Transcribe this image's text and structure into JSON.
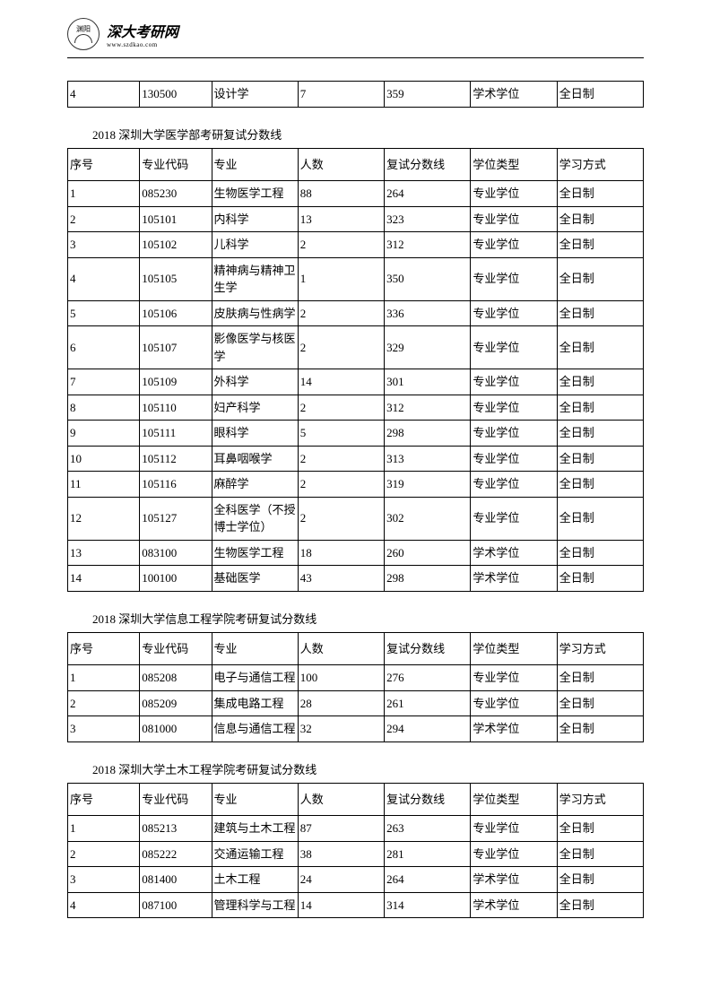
{
  "header": {
    "logo_top": "渊阳",
    "brand_main": "深大考研网",
    "brand_sub": "www.szdkao.com"
  },
  "tables": {
    "columns": [
      "序号",
      "专业代码",
      "专业",
      "人数",
      "复试分数线",
      "学位类型",
      "学习方式"
    ],
    "top_row": [
      "4",
      "130500",
      "设计学",
      "7",
      "359",
      "学术学位",
      "全日制"
    ],
    "medical": {
      "title": "2018 深圳大学医学部考研复试分数线",
      "rows": [
        [
          "1",
          "085230",
          "生物医学工程",
          "88",
          "264",
          "专业学位",
          "全日制"
        ],
        [
          "2",
          "105101",
          "内科学",
          "13",
          "323",
          "专业学位",
          "全日制"
        ],
        [
          "3",
          "105102",
          "儿科学",
          "2",
          "312",
          "专业学位",
          "全日制"
        ],
        [
          "4",
          "105105",
          "精神病与精神卫生学",
          "1",
          "350",
          "专业学位",
          "全日制"
        ],
        [
          "5",
          "105106",
          "皮肤病与性病学",
          "2",
          "336",
          "专业学位",
          "全日制"
        ],
        [
          "6",
          "105107",
          "影像医学与核医学",
          "2",
          "329",
          "专业学位",
          "全日制"
        ],
        [
          "7",
          "105109",
          "外科学",
          "14",
          "301",
          "专业学位",
          "全日制"
        ],
        [
          "8",
          "105110",
          "妇产科学",
          "2",
          "312",
          "专业学位",
          "全日制"
        ],
        [
          "9",
          "105111",
          "眼科学",
          "5",
          "298",
          "专业学位",
          "全日制"
        ],
        [
          "10",
          "105112",
          "耳鼻咽喉学",
          "2",
          "313",
          "专业学位",
          "全日制"
        ],
        [
          "11",
          "105116",
          "麻醉学",
          "2",
          "319",
          "专业学位",
          "全日制"
        ],
        [
          "12",
          "105127",
          "全科医学（不授博士学位）",
          "2",
          "302",
          "专业学位",
          "全日制"
        ],
        [
          "13",
          "083100",
          "生物医学工程",
          "18",
          "260",
          "学术学位",
          "全日制"
        ],
        [
          "14",
          "100100",
          "基础医学",
          "43",
          "298",
          "学术学位",
          "全日制"
        ]
      ]
    },
    "info": {
      "title": "2018 深圳大学信息工程学院考研复试分数线",
      "rows": [
        [
          "1",
          "085208",
          "电子与通信工程",
          "100",
          "276",
          "专业学位",
          "全日制"
        ],
        [
          "2",
          "085209",
          "集成电路工程",
          "28",
          "261",
          "专业学位",
          "全日制"
        ],
        [
          "3",
          "081000",
          "信息与通信工程",
          "32",
          "294",
          "学术学位",
          "全日制"
        ]
      ]
    },
    "civil": {
      "title": "2018 深圳大学土木工程学院考研复试分数线",
      "rows": [
        [
          "1",
          "085213",
          "建筑与土木工程",
          "87",
          "263",
          "专业学位",
          "全日制"
        ],
        [
          "2",
          "085222",
          "交通运输工程",
          "38",
          "281",
          "专业学位",
          "全日制"
        ],
        [
          "3",
          "081400",
          "土木工程",
          "24",
          "264",
          "学术学位",
          "全日制"
        ],
        [
          "4",
          "087100",
          "管理科学与工程",
          "14",
          "314",
          "学术学位",
          "全日制"
        ]
      ]
    }
  }
}
